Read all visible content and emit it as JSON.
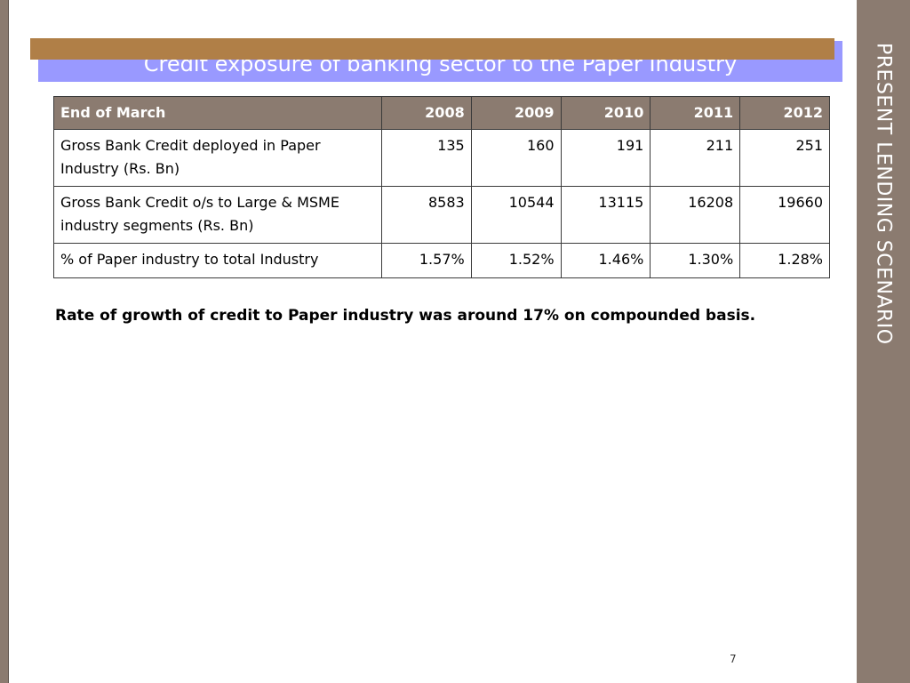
{
  "slide": {
    "title": "Credit exposure of banking sector to the Paper Industry",
    "side_title": "PRESENT LENDING SCENARIO",
    "note": "Rate of growth of credit to Paper industry was around 17% on compounded basis.",
    "page_number": "7"
  },
  "colors": {
    "sidebar": "#8b7b70",
    "title_band": "#9999ff",
    "title_overlay": "#b07f47",
    "table_header": "#8b7b70"
  },
  "table": {
    "header": [
      "End of March",
      "2008",
      "2009",
      "2010",
      "2011",
      "2012"
    ],
    "rows": [
      [
        "Gross Bank Credit deployed in Paper Industry (Rs. Bn)",
        "135",
        "160",
        "191",
        "211",
        "251"
      ],
      [
        "Gross Bank Credit o/s to Large & MSME industry segments  (Rs. Bn)",
        "8583",
        "10544",
        "13115",
        "16208",
        "19660"
      ],
      [
        "% of Paper industry to total Industry",
        "1.57%",
        "1.52%",
        "1.46%",
        "1.30%",
        "1.28%"
      ]
    ]
  }
}
